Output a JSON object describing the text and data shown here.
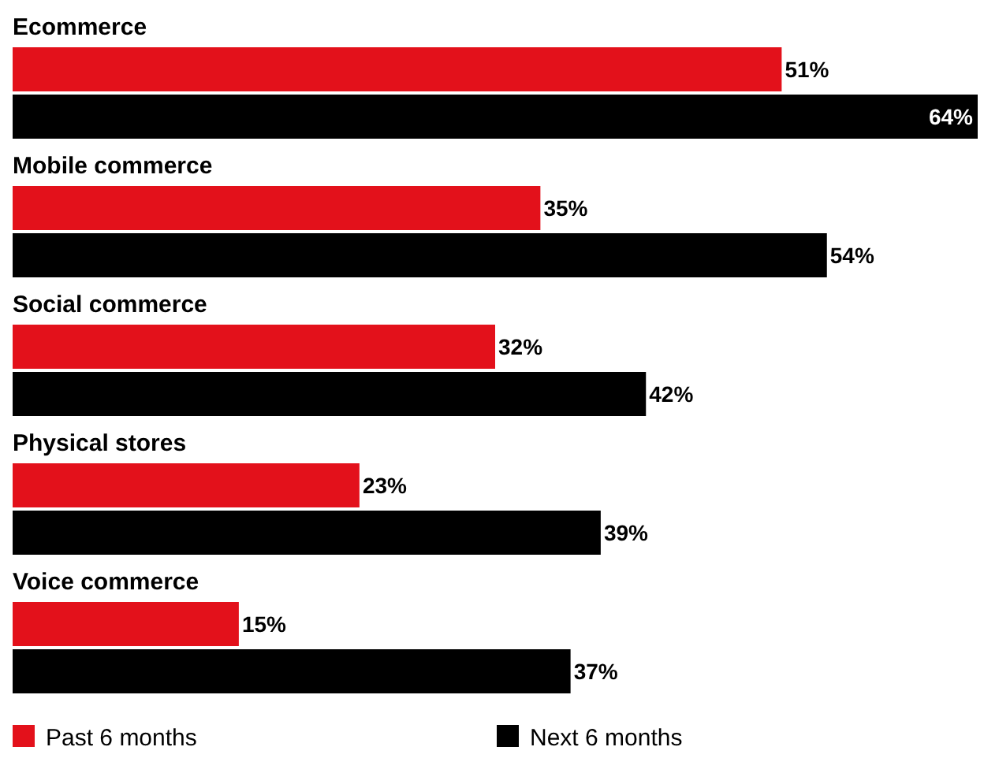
{
  "chart_data": {
    "type": "bar",
    "orientation": "horizontal",
    "categories": [
      "Ecommerce",
      "Mobile commerce",
      "Social commerce",
      "Physical stores",
      "Voice commerce"
    ],
    "series": [
      {
        "name": "Past 6 months",
        "color": "#e3111b",
        "values": [
          51,
          35,
          32,
          23,
          15
        ],
        "value_labels": [
          "51%",
          "35%",
          "32%",
          "23%",
          "15%"
        ]
      },
      {
        "name": "Next 6 months",
        "color": "#000000",
        "values": [
          64,
          54,
          42,
          39,
          37
        ],
        "value_labels": [
          "64%",
          "54%",
          "42%",
          "39%",
          "37%"
        ]
      }
    ],
    "legend": "bottom"
  }
}
